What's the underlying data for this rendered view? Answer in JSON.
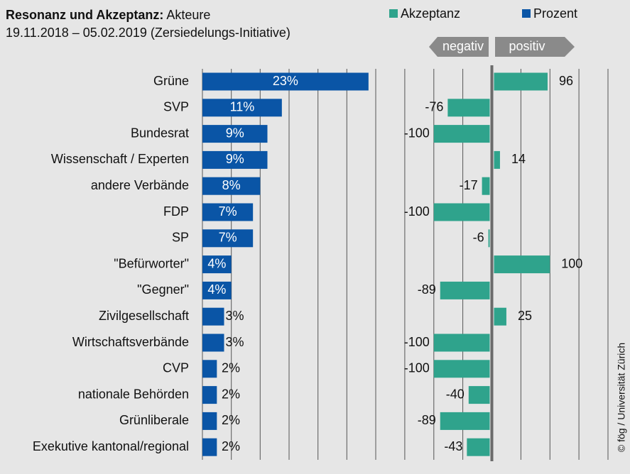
{
  "chart_data": {
    "type": "bar",
    "title": "Resonanz und Akzeptanz:",
    "title_detail": "Akteure",
    "subtitle": "19.11.2018 – 05.02.2019 (Zersiedelungs-Initiative)",
    "annotations": [
      "negativ",
      "positiv"
    ],
    "credit": "© fög / Universität  Zürich",
    "categories": [
      "Grüne",
      "SVP",
      "Bundesrat",
      "Wissenschaft / Experten",
      "andere Verbände",
      "FDP",
      "SP",
      "\"Befürworter\"",
      "\"Gegner\"",
      "Zivilgesellschaft",
      "Wirtschaftsverbände",
      "CVP",
      "nationale Behörden",
      "Grünliberale",
      "Exekutive kantonal/regional"
    ],
    "series": [
      {
        "name": "Akzeptanz",
        "color": "#2fa38c",
        "xlim": [
          -200,
          200
        ],
        "values": [
          96,
          -76,
          -100,
          14,
          -17,
          -100,
          -6,
          100,
          -89,
          25,
          -100,
          -100,
          -40,
          -89,
          -43
        ]
      },
      {
        "name": "Prozent",
        "color": "#0a55a6",
        "xlim": [
          0,
          24
        ],
        "values": [
          23,
          11,
          9,
          9,
          8,
          7,
          7,
          4,
          4,
          3,
          3,
          2,
          2,
          2,
          2
        ],
        "value_labels": [
          "23%",
          "11%",
          "9%",
          "9%",
          "8%",
          "7%",
          "7%",
          "4%",
          "4%",
          "3%",
          "3%",
          "2%",
          "2%",
          "2%",
          "2%"
        ]
      }
    ]
  }
}
